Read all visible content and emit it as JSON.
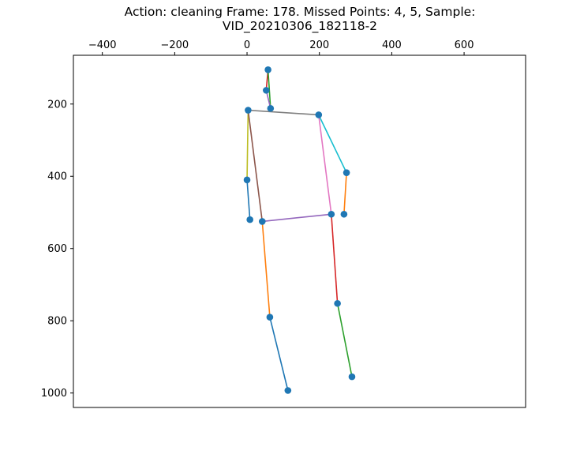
{
  "chart_data": {
    "type": "scatter",
    "title_lines": [
      "Action: cleaning   Frame: 178. Missed Points: 4, 5,  Sample:",
      "VID_20210306_182118-2"
    ],
    "xlabel": "",
    "ylabel": "",
    "x_axis_position": "top",
    "y_inverted": true,
    "xlim": [
      -480,
      770
    ],
    "ylim": [
      1040,
      65
    ],
    "xticks": [
      -400,
      -200,
      0,
      200,
      400,
      600
    ],
    "yticks": [
      200,
      400,
      600,
      800,
      1000
    ],
    "grid": false,
    "point_color": "#1f77b4",
    "points": [
      {
        "x": 58,
        "y": 105
      },
      {
        "x": 53,
        "y": 162
      },
      {
        "x": 65,
        "y": 212
      },
      {
        "x": 3,
        "y": 217
      },
      {
        "x": 198,
        "y": 230
      },
      {
        "x": 275,
        "y": 390
      },
      {
        "x": 0,
        "y": 410
      },
      {
        "x": 233,
        "y": 505
      },
      {
        "x": 268,
        "y": 505
      },
      {
        "x": 8,
        "y": 520
      },
      {
        "x": 42,
        "y": 525
      },
      {
        "x": 250,
        "y": 752
      },
      {
        "x": 63,
        "y": 790
      },
      {
        "x": 290,
        "y": 955
      },
      {
        "x": 113,
        "y": 993
      }
    ],
    "segments": [
      {
        "from": 0,
        "to": 1,
        "color": "#d62728"
      },
      {
        "from": 0,
        "to": 2,
        "color": "#2ca02c"
      },
      {
        "from": 1,
        "to": 2,
        "color": "#9467bd"
      },
      {
        "from": 3,
        "to": 4,
        "color": "#7f7f7f"
      },
      {
        "from": 3,
        "to": 6,
        "color": "#bcbd22"
      },
      {
        "from": 3,
        "to": 10,
        "color": "#8c564b"
      },
      {
        "from": 4,
        "to": 5,
        "color": "#17becf"
      },
      {
        "from": 4,
        "to": 7,
        "color": "#e377c2"
      },
      {
        "from": 5,
        "to": 8,
        "color": "#ff7f0e"
      },
      {
        "from": 6,
        "to": 9,
        "color": "#1f77b4"
      },
      {
        "from": 10,
        "to": 7,
        "color": "#9467bd"
      },
      {
        "from": 7,
        "to": 11,
        "color": "#d62728"
      },
      {
        "from": 11,
        "to": 13,
        "color": "#2ca02c"
      },
      {
        "from": 10,
        "to": 12,
        "color": "#ff7f0e"
      },
      {
        "from": 12,
        "to": 14,
        "color": "#1f77b4"
      }
    ]
  }
}
